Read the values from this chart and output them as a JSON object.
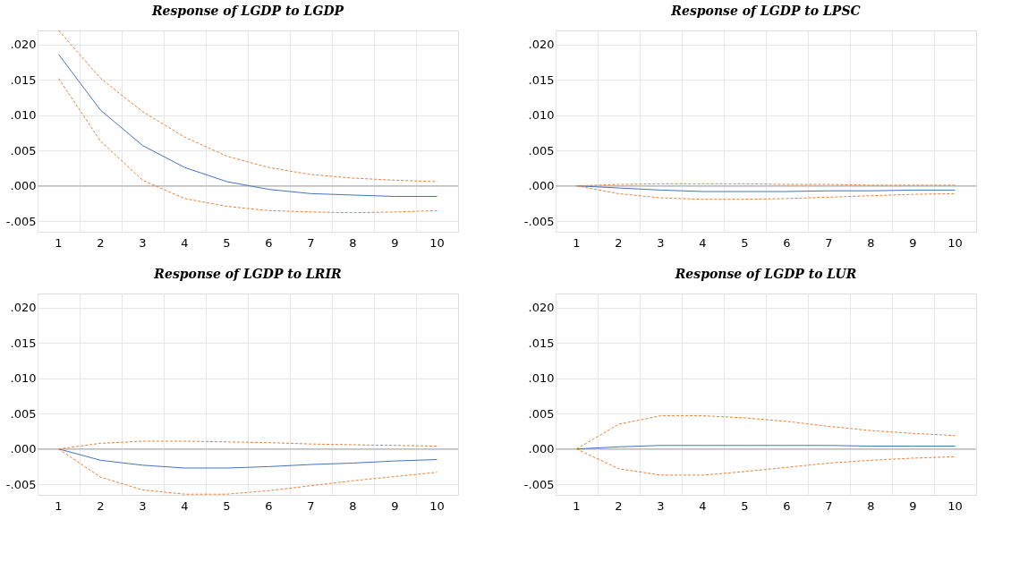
{
  "chart_data": [
    {
      "type": "line",
      "title": "Response of LGDP to LGDP",
      "categories": [
        "1",
        "2",
        "3",
        "4",
        "5",
        "6",
        "7",
        "8",
        "9",
        "10"
      ],
      "ylim": [
        -0.0065,
        0.022
      ],
      "yticks": [
        {
          "value": -0.005,
          "label": "-.005"
        },
        {
          "value": 0.0,
          "label": ".000"
        },
        {
          "value": 0.005,
          "label": ".005"
        },
        {
          "value": 0.01,
          "label": ".010"
        },
        {
          "value": 0.015,
          "label": ".015"
        },
        {
          "value": 0.02,
          "label": ".020"
        }
      ],
      "grid": true,
      "ref_lines": [
        {
          "axis": "y",
          "value": 0,
          "color": "#bfbfbf"
        }
      ],
      "series": [
        {
          "color": "#4472c4",
          "line_style": "solid",
          "values": [
            0.0186,
            0.0107,
            0.0057,
            0.0026,
            0.0006,
            -0.0005,
            -0.0011,
            -0.0013,
            -0.0015,
            -0.0015
          ]
        },
        {
          "color": "#ed7d31",
          "line_style": "dashed",
          "values": [
            0.022,
            0.0152,
            0.0105,
            0.0069,
            0.0042,
            0.0026,
            0.0016,
            0.0011,
            0.0008,
            0.0006
          ]
        },
        {
          "color": "#ed7d31",
          "line_style": "dashed",
          "values": [
            0.0152,
            0.0063,
            0.0008,
            -0.0018,
            -0.0029,
            -0.0035,
            -0.0037,
            -0.0038,
            -0.0037,
            -0.0035
          ]
        }
      ]
    },
    {
      "type": "line",
      "title": "Response of LGDP to LPSC",
      "categories": [
        "1",
        "2",
        "3",
        "4",
        "5",
        "6",
        "7",
        "8",
        "9",
        "10"
      ],
      "ylim": [
        -0.0065,
        0.022
      ],
      "yticks": [
        {
          "value": -0.005,
          "label": "-.005"
        },
        {
          "value": 0.0,
          "label": ".000"
        },
        {
          "value": 0.005,
          "label": ".005"
        },
        {
          "value": 0.01,
          "label": ".010"
        },
        {
          "value": 0.015,
          "label": ".015"
        },
        {
          "value": 0.02,
          "label": ".020"
        }
      ],
      "grid": true,
      "ref_lines": [
        {
          "axis": "y",
          "value": 0,
          "color": "#bfbfbf"
        }
      ],
      "series": [
        {
          "color": "#4472c4",
          "line_style": "solid",
          "values": [
            0.0,
            -0.0003,
            -0.0006,
            -0.0008,
            -0.0008,
            -0.0008,
            -0.0007,
            -0.0007,
            -0.0006,
            -0.0006
          ]
        },
        {
          "color": "#ed7d31",
          "line_style": "dashed",
          "values": [
            0.0,
            0.0002,
            0.0003,
            0.0003,
            0.0003,
            0.0002,
            0.0002,
            0.0001,
            0.0001,
            0.0001
          ]
        },
        {
          "color": "#ed7d31",
          "line_style": "dashed",
          "values": [
            0.0,
            -0.0011,
            -0.0017,
            -0.0019,
            -0.0019,
            -0.0018,
            -0.0016,
            -0.0014,
            -0.0012,
            -0.0011
          ]
        }
      ]
    },
    {
      "type": "line",
      "title": "Response of LGDP to LRIR",
      "categories": [
        "1",
        "2",
        "3",
        "4",
        "5",
        "6",
        "7",
        "8",
        "9",
        "10"
      ],
      "ylim": [
        -0.0065,
        0.022
      ],
      "yticks": [
        {
          "value": -0.005,
          "label": "-.005"
        },
        {
          "value": 0.0,
          "label": ".000"
        },
        {
          "value": 0.005,
          "label": ".005"
        },
        {
          "value": 0.01,
          "label": ".010"
        },
        {
          "value": 0.015,
          "label": ".015"
        },
        {
          "value": 0.02,
          "label": ".020"
        }
      ],
      "grid": true,
      "ref_lines": [
        {
          "axis": "y",
          "value": 0,
          "color": "#bfbfbf"
        }
      ],
      "series": [
        {
          "color": "#4472c4",
          "line_style": "solid",
          "values": [
            0.0,
            -0.0016,
            -0.0023,
            -0.0027,
            -0.0027,
            -0.0025,
            -0.0022,
            -0.002,
            -0.0017,
            -0.0015
          ]
        },
        {
          "color": "#ed7d31",
          "line_style": "dashed",
          "values": [
            0.0,
            0.0008,
            0.0011,
            0.0011,
            0.001,
            0.0009,
            0.0007,
            0.0006,
            0.0005,
            0.0004
          ]
        },
        {
          "color": "#ed7d31",
          "line_style": "dashed",
          "values": [
            0.0,
            -0.004,
            -0.0058,
            -0.0064,
            -0.0064,
            -0.0059,
            -0.0052,
            -0.0045,
            -0.0039,
            -0.0033
          ]
        }
      ]
    },
    {
      "type": "line",
      "title": "Response of LGDP to LUR",
      "categories": [
        "1",
        "2",
        "3",
        "4",
        "5",
        "6",
        "7",
        "8",
        "9",
        "10"
      ],
      "ylim": [
        -0.0065,
        0.022
      ],
      "yticks": [
        {
          "value": -0.005,
          "label": "-.005"
        },
        {
          "value": 0.0,
          "label": ".000"
        },
        {
          "value": 0.005,
          "label": ".005"
        },
        {
          "value": 0.01,
          "label": ".010"
        },
        {
          "value": 0.015,
          "label": ".015"
        },
        {
          "value": 0.02,
          "label": ".020"
        }
      ],
      "grid": true,
      "ref_lines": [
        {
          "axis": "y",
          "value": 0,
          "color": "#bfbfbf"
        }
      ],
      "series": [
        {
          "color": "#4472c4",
          "line_style": "solid",
          "values": [
            0.0,
            0.0003,
            0.0005,
            0.0005,
            0.0005,
            0.0005,
            0.0005,
            0.0004,
            0.0004,
            0.0004
          ]
        },
        {
          "color": "#ed7d31",
          "line_style": "dashed",
          "values": [
            0.0,
            0.0035,
            0.0047,
            0.0047,
            0.0044,
            0.0039,
            0.0032,
            0.0026,
            0.0022,
            0.0019
          ]
        },
        {
          "color": "#ed7d31",
          "line_style": "dashed",
          "values": [
            0.0,
            -0.0028,
            -0.0037,
            -0.0037,
            -0.0032,
            -0.0026,
            -0.002,
            -0.0016,
            -0.0013,
            -0.0011
          ]
        }
      ]
    }
  ]
}
